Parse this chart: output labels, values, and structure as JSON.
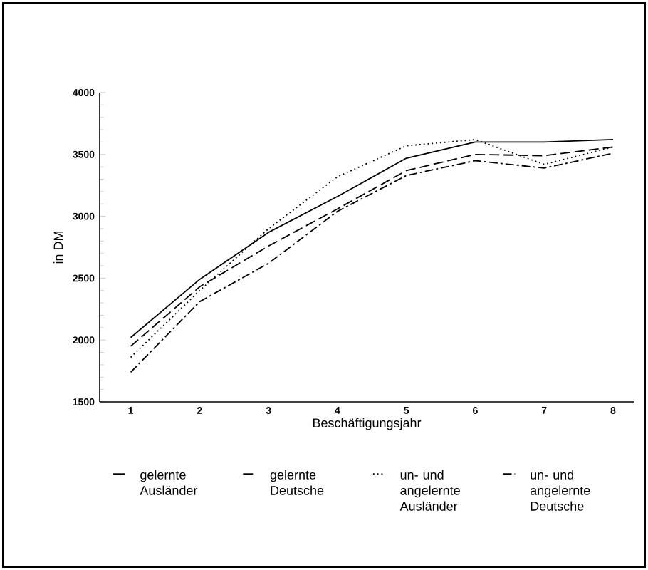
{
  "chart_data": {
    "type": "line",
    "xlabel": "Beschäftigungsjahr",
    "ylabel": "in DM",
    "x": [
      1,
      2,
      3,
      4,
      5,
      6,
      7,
      8
    ],
    "xlim": [
      0.55,
      8.3
    ],
    "xticks": [
      1,
      2,
      3,
      4,
      5,
      6,
      7,
      8
    ],
    "ylim": [
      1500,
      4000
    ],
    "yticks": [
      1500,
      2000,
      2500,
      3000,
      3500,
      4000
    ],
    "legend": "bottom",
    "grid": false,
    "marker": "none",
    "series": [
      {
        "name": "gelernte Ausländer",
        "color": "#000000",
        "line_style": "solid",
        "values": [
          2020,
          2490,
          2870,
          3160,
          3470,
          3600,
          3600,
          3620
        ]
      },
      {
        "name": "gelernte Deutsche",
        "color": "#000000",
        "line_style": "dashed",
        "values": [
          1950,
          2430,
          2760,
          3060,
          3370,
          3500,
          3490,
          3560
        ]
      },
      {
        "name": "un- und angelernte Ausländer",
        "color": "#000000",
        "line_style": "dotted",
        "values": [
          1860,
          2400,
          2900,
          3320,
          3570,
          3620,
          3420,
          3560
        ]
      },
      {
        "name": "un- und angelernte Deutsche",
        "color": "#000000",
        "line_style": "dashdot",
        "values": [
          1740,
          2310,
          2620,
          3040,
          3330,
          3450,
          3390,
          3510
        ]
      }
    ]
  }
}
